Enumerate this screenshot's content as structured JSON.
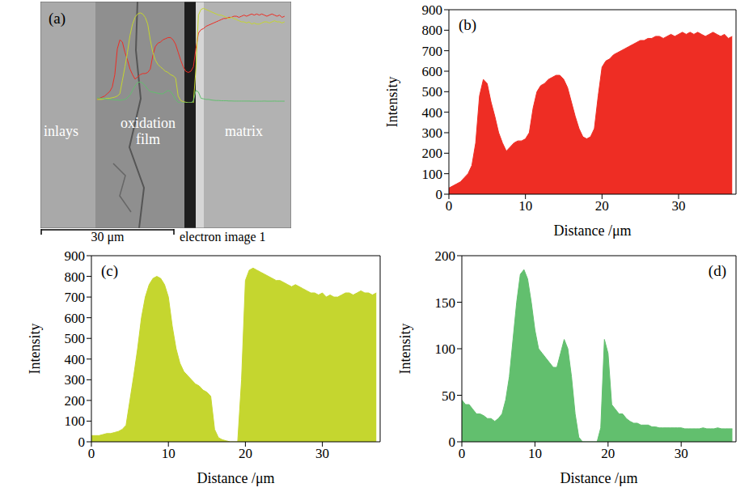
{
  "panel_a": {
    "label": "(a)",
    "regions": [
      "inlays",
      "oxidation film",
      "matrix"
    ],
    "scale_bar": "30 μm",
    "caption": "electron image 1"
  },
  "chart_data": [
    {
      "panel": "(b)",
      "type": "area",
      "x_label": "Distance /μm",
      "y_label": "Intensity",
      "color": "#ee2d24",
      "xlim": [
        0,
        37.5
      ],
      "xticks": [
        0,
        10,
        20,
        30
      ],
      "ylim": [
        0,
        900
      ],
      "yticks": [
        0,
        100,
        200,
        300,
        400,
        500,
        600,
        700,
        800,
        900
      ],
      "x": [
        0,
        0.5,
        1,
        1.5,
        2,
        2.5,
        3,
        3.5,
        4,
        4.5,
        5,
        5.5,
        6,
        6.5,
        7,
        7.5,
        8,
        8.5,
        9,
        9.5,
        10,
        10.5,
        11,
        11.5,
        12,
        12.5,
        13,
        13.5,
        14,
        14.5,
        15,
        15.5,
        16,
        16.5,
        17,
        17.5,
        18,
        18.5,
        19,
        19.5,
        20,
        20.5,
        21,
        21.5,
        22,
        22.5,
        23,
        23.5,
        24,
        24.5,
        25,
        25.5,
        26,
        26.5,
        27,
        27.5,
        28,
        28.5,
        29,
        29.5,
        30,
        30.5,
        31,
        31.5,
        32,
        32.5,
        33,
        33.5,
        34,
        34.5,
        35,
        35.5,
        36,
        36.5,
        37
      ],
      "values": [
        30,
        40,
        50,
        60,
        80,
        100,
        140,
        250,
        480,
        560,
        540,
        450,
        380,
        300,
        250,
        210,
        230,
        250,
        260,
        260,
        270,
        300,
        420,
        500,
        530,
        540,
        560,
        570,
        580,
        580,
        560,
        520,
        450,
        380,
        320,
        280,
        270,
        280,
        320,
        480,
        620,
        650,
        660,
        680,
        690,
        700,
        710,
        720,
        730,
        740,
        750,
        750,
        760,
        760,
        770,
        770,
        760,
        770,
        780,
        770,
        780,
        790,
        780,
        790,
        780,
        790,
        780,
        770,
        780,
        790,
        780,
        770,
        780,
        760,
        770
      ]
    },
    {
      "panel": "(c)",
      "type": "area",
      "x_label": "Distance /μm",
      "y_label": "Intensity",
      "color": "#c5d62f",
      "xlim": [
        0,
        37.5
      ],
      "xticks": [
        0,
        10,
        20,
        30
      ],
      "ylim": [
        0,
        900
      ],
      "yticks": [
        0,
        100,
        200,
        300,
        400,
        500,
        600,
        700,
        800,
        900
      ],
      "x": [
        0,
        0.5,
        1,
        1.5,
        2,
        2.5,
        3,
        3.5,
        4,
        4.5,
        5,
        5.5,
        6,
        6.5,
        7,
        7.5,
        8,
        8.5,
        9,
        9.5,
        10,
        10.5,
        11,
        11.5,
        12,
        12.5,
        13,
        13.5,
        14,
        14.5,
        15,
        15.5,
        16,
        16.5,
        17,
        17.5,
        18,
        18.5,
        19,
        19.5,
        20,
        20.5,
        21,
        21.5,
        22,
        22.5,
        23,
        23.5,
        24,
        24.5,
        25,
        25.5,
        26,
        26.5,
        27,
        27.5,
        28,
        28.5,
        29,
        29.5,
        30,
        30.5,
        31,
        31.5,
        32,
        32.5,
        33,
        33.5,
        34,
        34.5,
        35,
        35.5,
        36,
        36.5,
        37
      ],
      "values": [
        30,
        30,
        30,
        35,
        40,
        40,
        45,
        50,
        60,
        80,
        200,
        320,
        450,
        600,
        700,
        760,
        790,
        800,
        790,
        760,
        700,
        560,
        450,
        380,
        340,
        320,
        300,
        280,
        270,
        250,
        240,
        220,
        60,
        20,
        10,
        5,
        0,
        0,
        0,
        300,
        780,
        830,
        840,
        830,
        820,
        810,
        800,
        790,
        780,
        780,
        770,
        760,
        750,
        760,
        750,
        740,
        730,
        720,
        720,
        710,
        720,
        700,
        710,
        700,
        700,
        710,
        720,
        720,
        710,
        720,
        730,
        720,
        720,
        710,
        720
      ]
    },
    {
      "panel": "(d)",
      "type": "area",
      "x_label": "Distance /μm",
      "y_label": "Intensity",
      "color": "#62bf6e",
      "xlim": [
        0,
        37.5
      ],
      "xticks": [
        0,
        10,
        20,
        30
      ],
      "ylim": [
        0,
        200
      ],
      "yticks": [
        0,
        50,
        100,
        150,
        200
      ],
      "x": [
        0,
        0.5,
        1,
        1.5,
        2,
        2.5,
        3,
        3.5,
        4,
        4.5,
        5,
        5.5,
        6,
        6.5,
        7,
        7.5,
        8,
        8.5,
        9,
        9.5,
        10,
        10.5,
        11,
        11.5,
        12,
        12.5,
        13,
        13.5,
        14,
        14.5,
        15,
        15.5,
        16,
        16.5,
        17,
        17.5,
        18,
        18.5,
        19,
        19.5,
        20,
        20.5,
        21,
        21.5,
        22,
        22.5,
        23,
        23.5,
        24,
        24.5,
        25,
        25.5,
        26,
        26.5,
        27,
        27.5,
        28,
        28.5,
        29,
        29.5,
        30,
        30.5,
        31,
        31.5,
        32,
        32.5,
        33,
        33.5,
        34,
        34.5,
        35,
        35.5,
        36,
        36.5,
        37
      ],
      "values": [
        45,
        40,
        40,
        35,
        30,
        30,
        28,
        25,
        25,
        22,
        25,
        30,
        45,
        70,
        110,
        150,
        180,
        185,
        175,
        150,
        120,
        100,
        95,
        90,
        85,
        80,
        80,
        95,
        110,
        100,
        70,
        30,
        5,
        0,
        0,
        0,
        0,
        0,
        15,
        110,
        95,
        40,
        35,
        30,
        30,
        25,
        22,
        20,
        20,
        18,
        18,
        18,
        16,
        16,
        15,
        15,
        15,
        15,
        15,
        15,
        15,
        14,
        14,
        14,
        14,
        14,
        15,
        14,
        14,
        14,
        15,
        14,
        14,
        14,
        14
      ]
    }
  ]
}
